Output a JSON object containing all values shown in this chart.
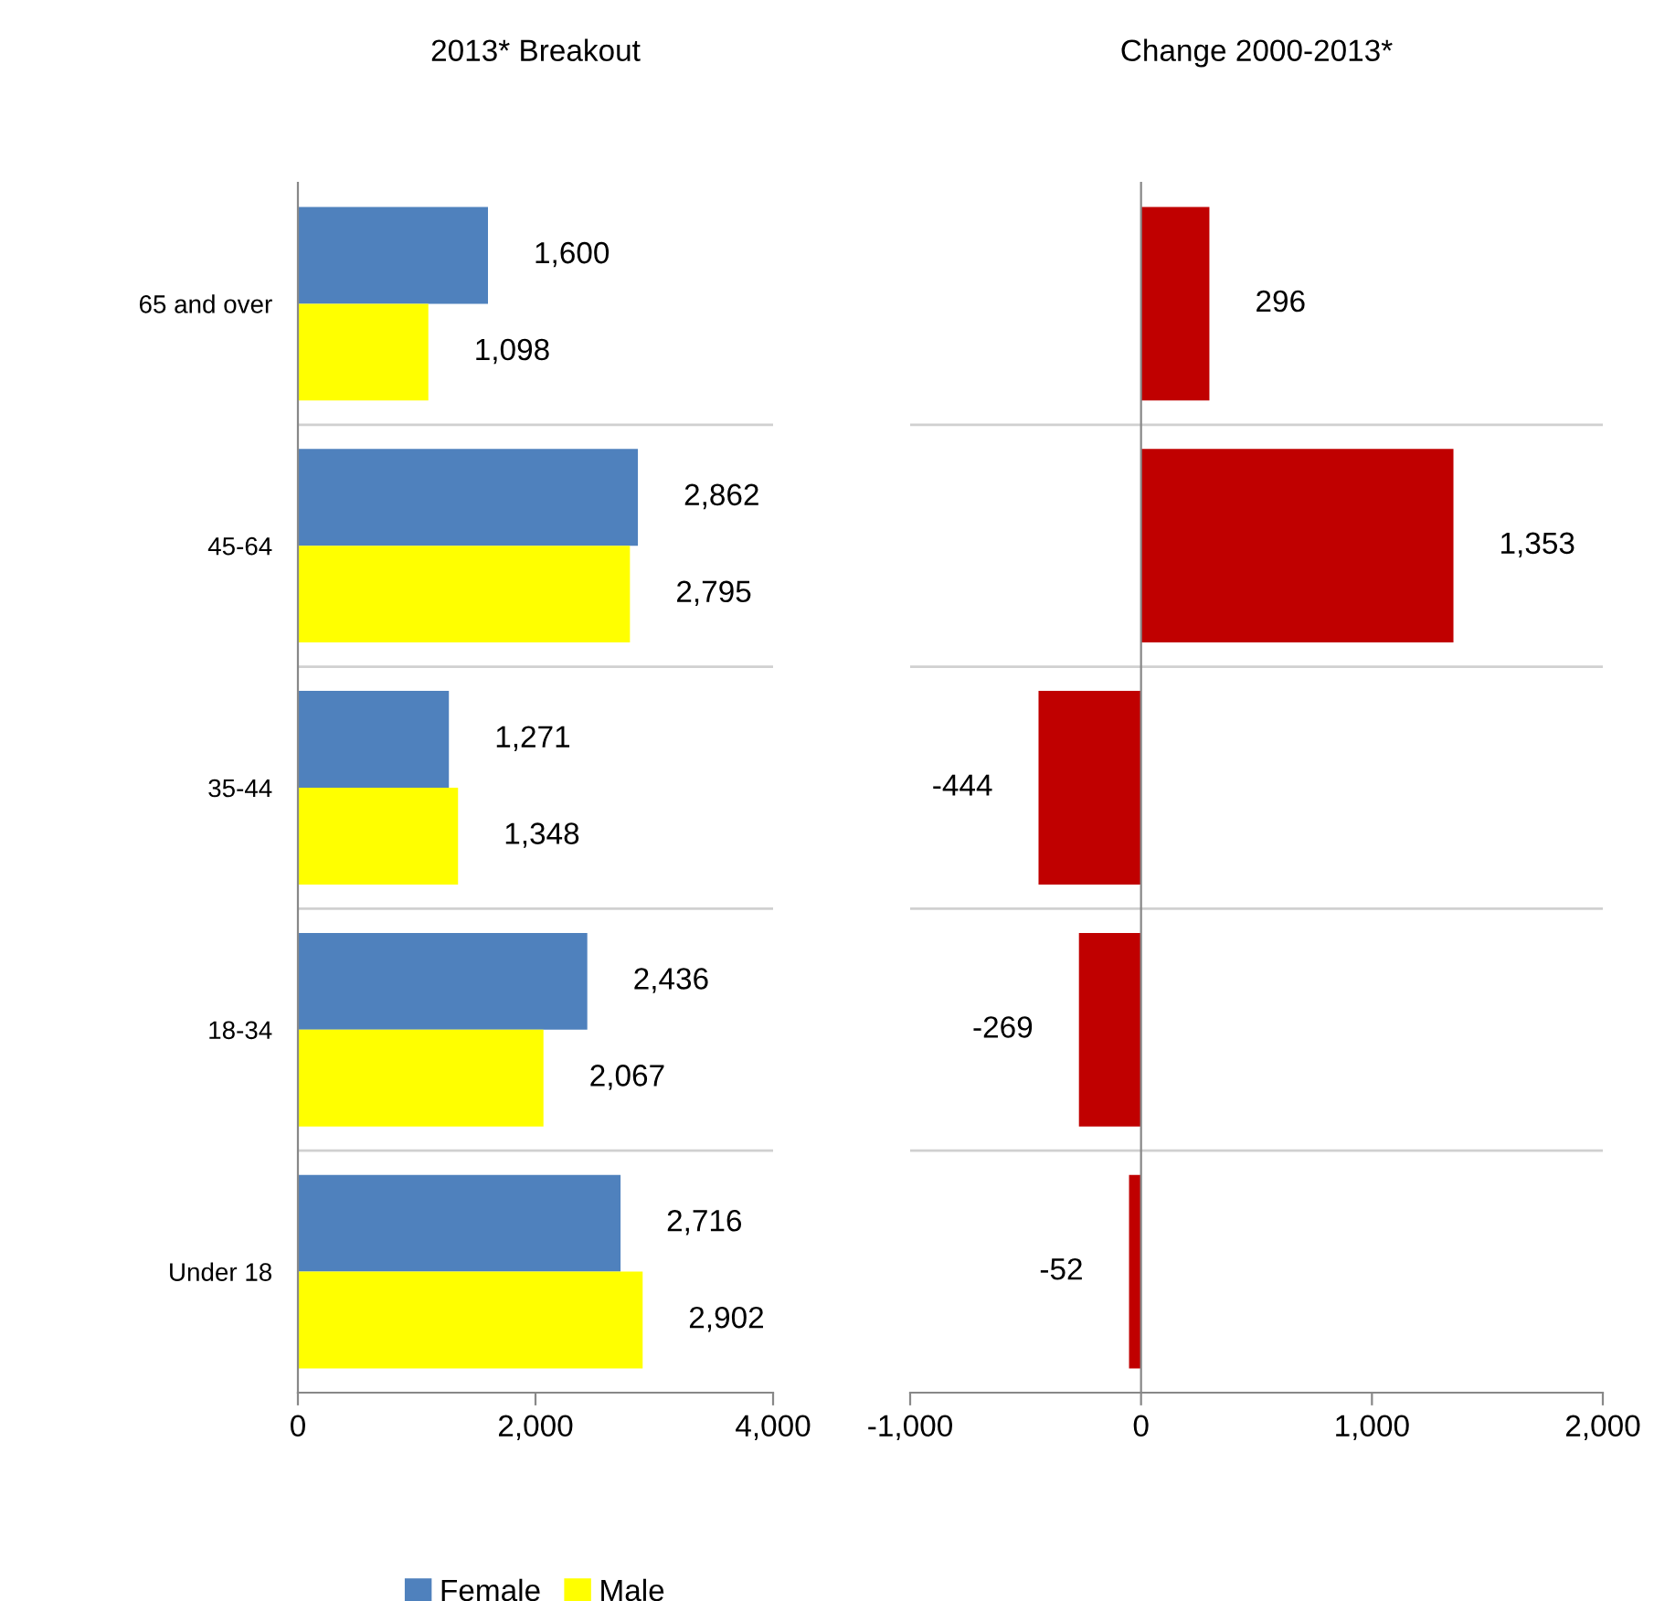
{
  "chart_data": [
    {
      "type": "bar",
      "orientation": "horizontal",
      "title": "2013* Breakout",
      "categories": [
        "65 and over",
        "45-64",
        "35-44",
        "18-34",
        "Under 18"
      ],
      "series": [
        {
          "name": "Female",
          "color": "#4f81bd",
          "values": [
            1600,
            2862,
            1271,
            2436,
            2716
          ],
          "value_labels": [
            "1,600",
            "2,862",
            "1,271",
            "2,436",
            "2,716"
          ]
        },
        {
          "name": "Male",
          "color": "#ffff00",
          "values": [
            1098,
            2795,
            1348,
            2067,
            2902
          ],
          "value_labels": [
            "1,098",
            "2,795",
            "1,348",
            "2,067",
            "2,902"
          ]
        }
      ],
      "xlim": [
        0,
        4000
      ],
      "xticks": [
        0,
        {
          "value": 2000,
          "label": "2,000"
        },
        {
          "value": 4000,
          "label": "4,000"
        }
      ],
      "grid": "y",
      "legend": "bottom"
    },
    {
      "type": "bar",
      "orientation": "horizontal",
      "title": "Change 2000-2013*",
      "categories": [
        null,
        null,
        null,
        null,
        null
      ],
      "series": [
        {
          "color": "#c00000",
          "values": [
            296,
            1353,
            -444,
            -269,
            -52
          ],
          "value_labels": [
            "296",
            "1,353",
            "-444",
            "-269",
            "-52"
          ]
        }
      ],
      "xlim": [
        -1000,
        2000
      ],
      "xticks": [
        {
          "value": -1000,
          "label": "-1,000"
        },
        0,
        {
          "value": 1000,
          "label": "1,000"
        },
        {
          "value": 2000,
          "label": "2,000"
        }
      ],
      "grid": "y",
      "tick_labels": "x"
    }
  ]
}
